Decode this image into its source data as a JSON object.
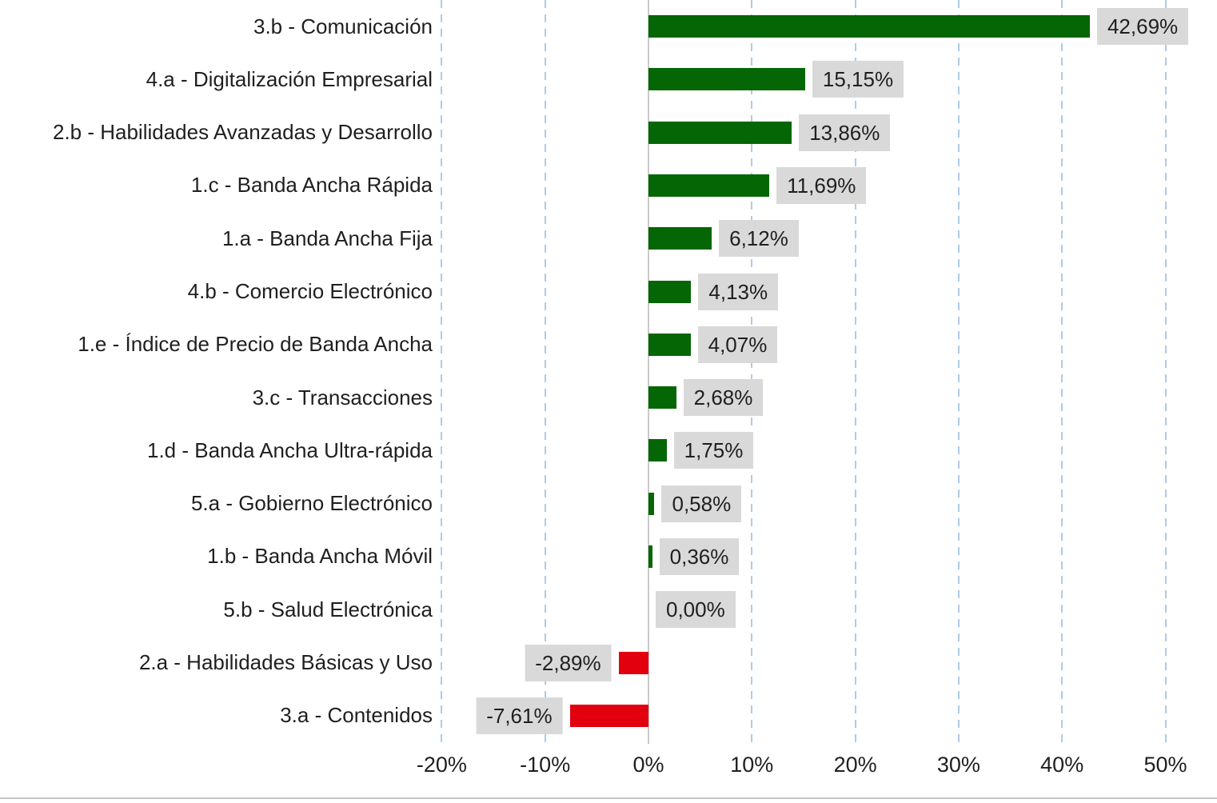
{
  "chart_data": {
    "type": "bar",
    "orientation": "horizontal",
    "title": "",
    "xlabel": "",
    "ylabel": "",
    "xlim": [
      -25,
      55
    ],
    "grid": "vertical-dashed",
    "legend": "none",
    "decimal_separator": ",",
    "xticks": [
      {
        "value": -20,
        "label": "-20%"
      },
      {
        "value": -10,
        "label": "-10%"
      },
      {
        "value": 0,
        "label": "0%"
      },
      {
        "value": 10,
        "label": "10%"
      },
      {
        "value": 20,
        "label": "20%"
      },
      {
        "value": 30,
        "label": "30%"
      },
      {
        "value": 40,
        "label": "40%"
      },
      {
        "value": 50,
        "label": "50%"
      }
    ],
    "bars": [
      {
        "category": "3.b - Comunicación",
        "value": 42.69,
        "label": "42,69%"
      },
      {
        "category": "4.a - Digitalización Empresarial",
        "value": 15.15,
        "label": "15,15%"
      },
      {
        "category": "2.b - Habilidades Avanzadas y Desarrollo",
        "value": 13.86,
        "label": "13,86%"
      },
      {
        "category": "1.c - Banda Ancha Rápida",
        "value": 11.69,
        "label": "11,69%"
      },
      {
        "category": "1.a - Banda Ancha Fija",
        "value": 6.12,
        "label": "6,12%"
      },
      {
        "category": "4.b - Comercio Electrónico",
        "value": 4.13,
        "label": "4,13%"
      },
      {
        "category": "1.e - Índice de Precio de Banda Ancha",
        "value": 4.07,
        "label": "4,07%"
      },
      {
        "category": "3.c - Transacciones",
        "value": 2.68,
        "label": "2,68%"
      },
      {
        "category": "1.d - Banda Ancha Ultra-rápida",
        "value": 1.75,
        "label": "1,75%"
      },
      {
        "category": "5.a - Gobierno Electrónico",
        "value": 0.58,
        "label": "0,58%"
      },
      {
        "category": "1.b - Banda Ancha Móvil",
        "value": 0.36,
        "label": "0,36%"
      },
      {
        "category": "5.b - Salud Electrónica",
        "value": 0.0,
        "label": "0,00%"
      },
      {
        "category": "2.a - Habilidades Básicas y Uso",
        "value": -2.89,
        "label": "-2,89%"
      },
      {
        "category": "3.a - Contenidos",
        "value": -7.61,
        "label": "-7,61%"
      }
    ],
    "colors": {
      "positive_bar": "#056605",
      "negative_bar": "#e2000f",
      "value_label_bg": "#d9d9d9",
      "gridline": "#adcbe8",
      "zero_line": "#c9c9c9",
      "text": "#1f1f1f",
      "background": "#ffffff"
    }
  }
}
